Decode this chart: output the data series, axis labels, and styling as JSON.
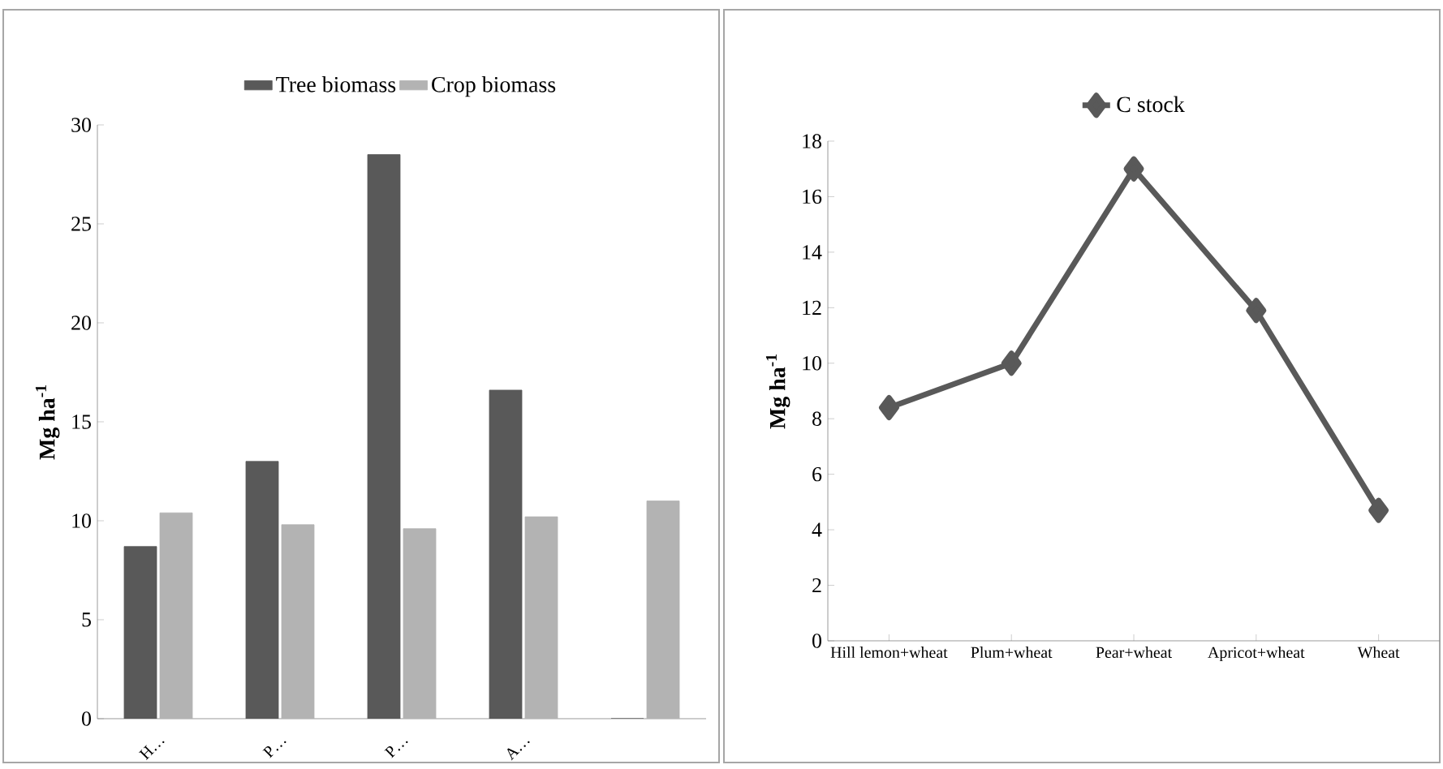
{
  "chart_data": [
    {
      "type": "bar",
      "categories": [
        "H…",
        "P…",
        "P…",
        "A…",
        null
      ],
      "ylabel": "Mg ha$^{-1}$",
      "ylim": [
        0,
        30
      ],
      "yticks": [
        0,
        5,
        10,
        15,
        20,
        25,
        30
      ],
      "grid": false,
      "legend": "top",
      "series": [
        {
          "name": "Tree biomass",
          "color": "#595959",
          "values": [
            8.7,
            13.0,
            28.5,
            16.6,
            0
          ]
        },
        {
          "name": "Crop biomass",
          "color": "#b3b3b3",
          "values": [
            10.4,
            9.8,
            9.6,
            10.2,
            11.0
          ]
        }
      ]
    },
    {
      "type": "line",
      "categories": [
        "Hill lemon+wheat",
        "Plum+wheat",
        "Pear+wheat",
        "Apricot+wheat",
        "Wheat"
      ],
      "ylabel": "Mg ha$^{-1}$",
      "ylim": [
        0,
        18
      ],
      "yticks": [
        0,
        2,
        4,
        6,
        8,
        10,
        12,
        14,
        16,
        18
      ],
      "grid": false,
      "legend": "top",
      "marker": "diamond",
      "line_style": "solid",
      "series": [
        {
          "name": "C stock",
          "color": "#595959",
          "values": [
            8.4,
            10.0,
            17.0,
            11.9,
            4.7
          ]
        }
      ]
    }
  ]
}
